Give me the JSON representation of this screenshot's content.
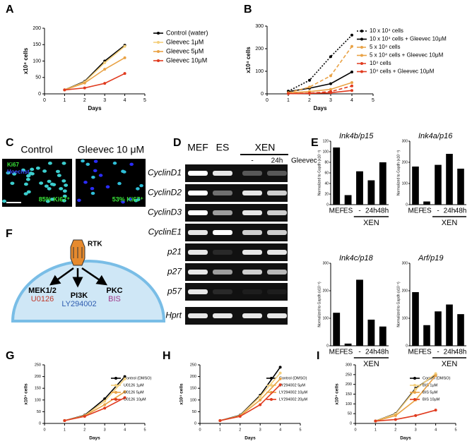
{
  "chart_data": [
    {
      "type": "line",
      "panel": "A",
      "x": [
        1,
        2,
        3,
        4
      ],
      "xlabel": "Days",
      "ylabel": "x10⁴ cells",
      "xlim": [
        0,
        5
      ],
      "xticks": [
        0,
        1,
        2,
        3,
        4,
        5
      ],
      "ylim": [
        0,
        200
      ],
      "yticks": [
        0,
        50,
        100,
        150,
        200
      ],
      "series": [
        {
          "name": "Control (water)",
          "color": "#000000",
          "values": [
            12,
            38,
            100,
            148
          ]
        },
        {
          "name": "Gleevec 1μM",
          "color": "#f3cf7c",
          "values": [
            12,
            36,
            95,
            145
          ]
        },
        {
          "name": "Gleevec 5μM",
          "color": "#e9a245",
          "values": [
            12,
            33,
            75,
            110
          ]
        },
        {
          "name": "Gleevec 10μM",
          "color": "#e03a1e",
          "values": [
            12,
            18,
            32,
            62
          ]
        }
      ]
    },
    {
      "type": "line",
      "panel": "B",
      "x": [
        1,
        2,
        3,
        4
      ],
      "xlabel": "Days",
      "ylabel": "x10⁴ cells",
      "xlim": [
        0,
        5
      ],
      "xticks": [
        0,
        1,
        2,
        3,
        4,
        5
      ],
      "ylim": [
        0,
        300
      ],
      "yticks": [
        0,
        100,
        200,
        300
      ],
      "series": [
        {
          "name": "10 x 10⁴ cells",
          "color": "#000000",
          "style": "dotted",
          "values": [
            12,
            60,
            165,
            260
          ]
        },
        {
          "name": "10 x 10⁴ cells + Gleevec 10μM",
          "color": "#000000",
          "values": [
            10,
            25,
            45,
            97
          ]
        },
        {
          "name": "5 x 10⁴ cells",
          "color": "#e9a245",
          "style": "dashed",
          "values": [
            5,
            30,
            80,
            210
          ]
        },
        {
          "name": "5 x 10⁴ cells + Gleevec 10μM",
          "color": "#e9a245",
          "values": [
            5,
            10,
            20,
            50
          ]
        },
        {
          "name": "10⁴ cells",
          "color": "#e03a1e",
          "style": "dashed",
          "values": [
            1,
            3,
            10,
            35
          ]
        },
        {
          "name": "10⁴ cells + Gleevec 10μM",
          "color": "#e03a1e",
          "values": [
            1,
            2,
            5,
            15
          ]
        }
      ]
    },
    {
      "type": "bar",
      "panel": "E",
      "title": "Ink4b/p15",
      "ylabel": "Normalized to Gapdh (x10⁻³)",
      "categories": [
        "MEF",
        "ES",
        "-",
        "24h",
        "48h"
      ],
      "group_label": "XEN",
      "values": [
        108,
        18,
        63,
        46,
        80
      ],
      "color": "#000000",
      "ylim": [
        0,
        120
      ],
      "yticks": [
        0,
        20,
        40,
        60,
        80,
        100,
        120
      ]
    },
    {
      "type": "bar",
      "title": "Ink4a/p16",
      "ylabel": "Normalized to Gapdh (x10⁻³)",
      "categories": [
        "MEF",
        "ES",
        "-",
        "24h",
        "48h"
      ],
      "group_label": "XEN",
      "values": [
        180,
        15,
        188,
        240,
        170
      ],
      "color": "#000000",
      "ylim": [
        0,
        300
      ],
      "yticks": [
        0,
        100,
        200,
        300
      ]
    },
    {
      "type": "bar",
      "title": "Ink4c/p18",
      "ylabel": "Normalized to Gapdh (x10⁻³)",
      "categories": [
        "MEF",
        "ES",
        "-",
        "24h",
        "48h"
      ],
      "group_label": "XEN",
      "values": [
        120,
        8,
        240,
        95,
        70
      ],
      "color": "#000000",
      "ylim": [
        0,
        300
      ],
      "yticks": [
        0,
        100,
        200,
        300
      ]
    },
    {
      "type": "bar",
      "title": "Arf/p19",
      "ylabel": "Normalized to Gapdh (x10⁻³)",
      "categories": [
        "MEF",
        "ES",
        "-",
        "24h",
        "48h"
      ],
      "group_label": "XEN",
      "values": [
        195,
        75,
        125,
        150,
        115
      ],
      "color": "#000000",
      "ylim": [
        0,
        300
      ],
      "yticks": [
        0,
        100,
        200,
        300
      ]
    },
    {
      "type": "line",
      "panel": "G",
      "x": [
        1,
        2,
        3,
        4
      ],
      "xlabel": "Days",
      "ylabel": "x10⁴ cells",
      "xlim": [
        0,
        5
      ],
      "xticks": [
        0,
        1,
        2,
        3,
        4,
        5
      ],
      "ylim": [
        0,
        250
      ],
      "yticks": [
        0,
        50,
        100,
        150,
        200,
        250
      ],
      "series": [
        {
          "name": "Control (DMSO)",
          "color": "#000000",
          "values": [
            12,
            35,
            105,
            200
          ]
        },
        {
          "name": "U0126  1μM",
          "color": "#f3cf7c",
          "values": [
            12,
            33,
            95,
            190
          ]
        },
        {
          "name": "U0126  5μM",
          "color": "#e9a245",
          "values": [
            12,
            32,
            80,
            135
          ]
        },
        {
          "name": "U0126  10μM",
          "color": "#e03a1e",
          "values": [
            12,
            30,
            65,
            110
          ]
        }
      ]
    },
    {
      "type": "line",
      "panel": "H",
      "x": [
        1,
        2,
        3,
        4
      ],
      "xlabel": "Days",
      "ylabel": "x10⁴ cells",
      "xlim": [
        0,
        5
      ],
      "xticks": [
        0,
        1,
        2,
        3,
        4,
        5
      ],
      "ylim": [
        0,
        250
      ],
      "yticks": [
        0,
        50,
        100,
        150,
        200,
        250
      ],
      "series": [
        {
          "name": "Control (DMSO)",
          "color": "#000000",
          "values": [
            12,
            35,
            120,
            240
          ]
        },
        {
          "name": "LY294002  5μM",
          "color": "#f3cf7c",
          "values": [
            12,
            33,
            115,
            215
          ]
        },
        {
          "name": "LY294002  10μM",
          "color": "#e9a245",
          "values": [
            12,
            32,
            100,
            190
          ]
        },
        {
          "name": "LY294002  20μM",
          "color": "#e03a1e",
          "values": [
            12,
            30,
            80,
            165
          ]
        }
      ]
    },
    {
      "type": "line",
      "panel": "I",
      "x": [
        1,
        2,
        3,
        4
      ],
      "xlabel": "Days",
      "ylabel": "x10⁴ cells",
      "xlim": [
        0,
        5
      ],
      "xticks": [
        0,
        1,
        2,
        3,
        4,
        5
      ],
      "ylim": [
        0,
        300
      ],
      "yticks": [
        0,
        50,
        100,
        150,
        200,
        250,
        300
      ],
      "series": [
        {
          "name": "Control (DMSO)",
          "color": "#000000",
          "values": [
            12,
            50,
            180,
            250
          ]
        },
        {
          "name": "BIS  1μM",
          "color": "#f3cf7c",
          "values": [
            12,
            48,
            175,
            255
          ]
        },
        {
          "name": "BIS  5μM",
          "color": "#e9a245",
          "values": [
            12,
            40,
            120,
            245
          ]
        },
        {
          "name": "BIS  10μM",
          "color": "#e03a1e",
          "values": [
            12,
            20,
            40,
            68
          ]
        }
      ]
    }
  ],
  "microscopy": {
    "panel": "C",
    "images": [
      {
        "title": "Control",
        "stain1": "Ki67",
        "stain2": "Hoechst",
        "caption": "85% Ki67⁺"
      },
      {
        "title": "Gleevec 10 μM",
        "caption": "53% Ki67⁺"
      }
    ]
  },
  "gel": {
    "panel": "D",
    "lanes": [
      "MEF",
      "ES",
      "XEN"
    ],
    "treatments": [
      "-",
      "24h"
    ],
    "treatment_label": "Gleevec",
    "rows": [
      "CyclinD1",
      "CyclinD2",
      "CyclinD3",
      "CyclinE1",
      "p21",
      "p27",
      "p57",
      "Hprt"
    ]
  },
  "pathway": {
    "panel": "F",
    "receptor": "RTK",
    "branches": [
      {
        "kinase": "MEK1/2",
        "inhibitor": "U0126"
      },
      {
        "kinase": "PI3K",
        "inhibitor": "LY294002"
      },
      {
        "kinase": "PKC",
        "inhibitor": "BIS"
      }
    ]
  }
}
